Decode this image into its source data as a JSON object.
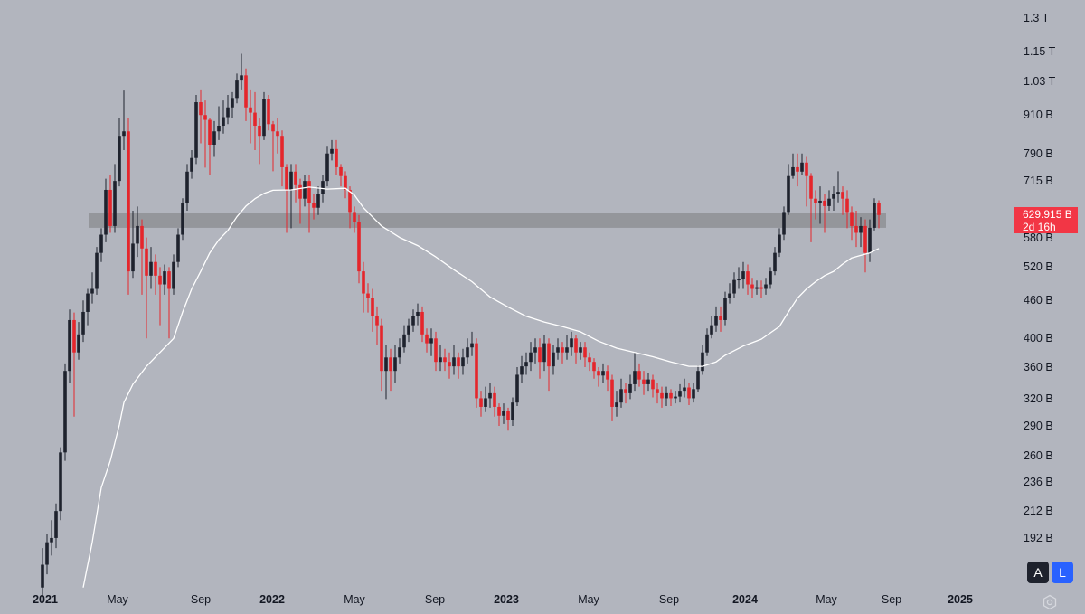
{
  "chart_data": {
    "type": "candlestick",
    "interval_note": "",
    "y_scale": "log",
    "ylim": [
      155,
      1320
    ],
    "y_unit": "B",
    "colors": {
      "up": "#1e222d",
      "down": "#e5262c",
      "ma": "#ffffff",
      "zone": "#8e9095",
      "background": "#b2b5be",
      "price_tag": "#f23645"
    },
    "y_ticks": [
      "1.3 T",
      "1.15 T",
      "1.03 T",
      "910 B",
      "790 B",
      "715 B",
      "580 B",
      "520 B",
      "460 B",
      "400 B",
      "360 B",
      "320 B",
      "290 B",
      "260 B",
      "236 B",
      "212 B",
      "192 B"
    ],
    "y_tick_values": [
      1300,
      1150,
      1030,
      910,
      790,
      715,
      580,
      520,
      460,
      400,
      360,
      320,
      290,
      260,
      236,
      212,
      192
    ],
    "x_ticks": [
      {
        "label": "2021",
        "year": true
      },
      {
        "label": "May",
        "year": false
      },
      {
        "label": "Sep",
        "year": false
      },
      {
        "label": "2022",
        "year": true
      },
      {
        "label": "May",
        "year": false
      },
      {
        "label": "Sep",
        "year": false
      },
      {
        "label": "2023",
        "year": true
      },
      {
        "label": "May",
        "year": false
      },
      {
        "label": "Sep",
        "year": false
      },
      {
        "label": "2024",
        "year": true
      },
      {
        "label": "May",
        "year": false
      },
      {
        "label": "Sep",
        "year": false
      },
      {
        "label": "2025",
        "year": true
      }
    ],
    "zone": {
      "low": 601,
      "high": 634
    },
    "candles": [
      [
        160,
        185,
        155,
        174
      ],
      [
        174,
        195,
        168,
        189
      ],
      [
        189,
        205,
        180,
        192
      ],
      [
        192,
        218,
        185,
        212
      ],
      [
        212,
        268,
        205,
        263
      ],
      [
        263,
        365,
        255,
        355
      ],
      [
        355,
        445,
        340,
        428
      ],
      [
        428,
        440,
        300,
        380
      ],
      [
        380,
        425,
        370,
        406
      ],
      [
        406,
        460,
        395,
        441
      ],
      [
        441,
        480,
        420,
        472
      ],
      [
        472,
        510,
        455,
        480
      ],
      [
        480,
        560,
        470,
        548
      ],
      [
        548,
        600,
        530,
        586
      ],
      [
        586,
        720,
        570,
        691
      ],
      [
        691,
        730,
        590,
        605
      ],
      [
        605,
        760,
        590,
        714
      ],
      [
        714,
        900,
        700,
        843
      ],
      [
        843,
        996,
        800,
        857
      ],
      [
        857,
        900,
        470,
        512
      ],
      [
        512,
        640,
        500,
        567
      ],
      [
        567,
        650,
        540,
        605
      ],
      [
        605,
        620,
        470,
        557
      ],
      [
        557,
        580,
        400,
        504
      ],
      [
        504,
        560,
        480,
        530
      ],
      [
        530,
        545,
        470,
        504
      ],
      [
        504,
        520,
        420,
        488
      ],
      [
        488,
        525,
        470,
        512
      ],
      [
        512,
        520,
        400,
        480
      ],
      [
        480,
        545,
        470,
        530
      ],
      [
        530,
        600,
        520,
        586
      ],
      [
        586,
        670,
        575,
        658
      ],
      [
        658,
        760,
        640,
        739
      ],
      [
        739,
        800,
        720,
        777
      ],
      [
        777,
        980,
        760,
        954
      ],
      [
        954,
        1000,
        820,
        910
      ],
      [
        910,
        960,
        750,
        894
      ],
      [
        894,
        900,
        730,
        816
      ],
      [
        816,
        890,
        780,
        857
      ],
      [
        857,
        940,
        830,
        875
      ],
      [
        875,
        960,
        850,
        903
      ],
      [
        903,
        980,
        880,
        936
      ],
      [
        936,
        990,
        900,
        969
      ],
      [
        969,
        1060,
        950,
        1033
      ],
      [
        1033,
        1140,
        1000,
        1053
      ],
      [
        1053,
        1080,
        890,
        936
      ],
      [
        936,
        1000,
        820,
        918
      ],
      [
        918,
        990,
        800,
        875
      ],
      [
        875,
        900,
        760,
        843
      ],
      [
        843,
        990,
        830,
        965
      ],
      [
        965,
        980,
        860,
        880
      ],
      [
        880,
        890,
        740,
        857
      ],
      [
        857,
        900,
        790,
        843
      ],
      [
        843,
        860,
        700,
        751
      ],
      [
        751,
        760,
        590,
        691
      ],
      [
        691,
        760,
        600,
        739
      ],
      [
        739,
        760,
        660,
        703
      ],
      [
        703,
        720,
        610,
        669
      ],
      [
        669,
        730,
        650,
        714
      ],
      [
        714,
        730,
        590,
        658
      ],
      [
        658,
        680,
        620,
        647
      ],
      [
        647,
        700,
        630,
        680
      ],
      [
        680,
        730,
        660,
        714
      ],
      [
        714,
        810,
        700,
        790
      ],
      [
        790,
        830,
        770,
        803
      ],
      [
        803,
        830,
        730,
        751
      ],
      [
        751,
        760,
        700,
        727
      ],
      [
        727,
        740,
        670,
        691
      ],
      [
        691,
        700,
        600,
        637
      ],
      [
        637,
        650,
        590,
        615
      ],
      [
        615,
        630,
        490,
        512
      ],
      [
        512,
        530,
        440,
        472
      ],
      [
        472,
        490,
        440,
        464
      ],
      [
        464,
        480,
        410,
        434
      ],
      [
        434,
        450,
        390,
        420
      ],
      [
        420,
        430,
        330,
        355
      ],
      [
        355,
        390,
        320,
        373
      ],
      [
        373,
        385,
        330,
        355
      ],
      [
        355,
        390,
        340,
        373
      ],
      [
        373,
        400,
        365,
        387
      ],
      [
        387,
        420,
        380,
        406
      ],
      [
        406,
        430,
        395,
        420
      ],
      [
        420,
        445,
        410,
        434
      ],
      [
        434,
        455,
        420,
        441
      ],
      [
        441,
        450,
        395,
        406
      ],
      [
        406,
        415,
        380,
        393
      ],
      [
        393,
        415,
        375,
        400
      ],
      [
        400,
        410,
        355,
        367
      ],
      [
        367,
        390,
        355,
        373
      ],
      [
        373,
        385,
        355,
        367
      ],
      [
        367,
        380,
        345,
        361
      ],
      [
        361,
        390,
        350,
        373
      ],
      [
        373,
        380,
        345,
        361
      ],
      [
        361,
        385,
        350,
        373
      ],
      [
        373,
        400,
        365,
        387
      ],
      [
        387,
        410,
        375,
        393
      ],
      [
        393,
        400,
        310,
        321
      ],
      [
        321,
        330,
        300,
        311
      ],
      [
        311,
        335,
        305,
        321
      ],
      [
        321,
        340,
        310,
        327
      ],
      [
        327,
        335,
        300,
        311
      ],
      [
        311,
        315,
        290,
        301
      ],
      [
        301,
        315,
        292,
        306
      ],
      [
        306,
        310,
        285,
        296
      ],
      [
        296,
        322,
        290,
        316
      ],
      [
        316,
        360,
        312,
        350
      ],
      [
        350,
        375,
        340,
        361
      ],
      [
        361,
        380,
        350,
        367
      ],
      [
        367,
        395,
        355,
        380
      ],
      [
        380,
        400,
        365,
        387
      ],
      [
        387,
        400,
        345,
        367
      ],
      [
        367,
        405,
        355,
        393
      ],
      [
        393,
        400,
        330,
        361
      ],
      [
        361,
        390,
        350,
        380
      ],
      [
        380,
        400,
        370,
        387
      ],
      [
        387,
        395,
        365,
        380
      ],
      [
        380,
        405,
        370,
        387
      ],
      [
        387,
        410,
        375,
        400
      ],
      [
        400,
        405,
        365,
        380
      ],
      [
        380,
        395,
        370,
        387
      ],
      [
        387,
        395,
        360,
        373
      ],
      [
        373,
        380,
        355,
        367
      ],
      [
        367,
        372,
        345,
        355
      ],
      [
        355,
        360,
        335,
        349
      ],
      [
        349,
        365,
        340,
        355
      ],
      [
        355,
        362,
        330,
        344
      ],
      [
        344,
        350,
        295,
        311
      ],
      [
        311,
        330,
        300,
        316
      ],
      [
        316,
        345,
        310,
        332
      ],
      [
        332,
        340,
        315,
        327
      ],
      [
        327,
        350,
        320,
        338
      ],
      [
        338,
        380,
        330,
        355
      ],
      [
        355,
        365,
        335,
        344
      ],
      [
        344,
        355,
        325,
        338
      ],
      [
        338,
        352,
        330,
        344
      ],
      [
        344,
        350,
        322,
        332
      ],
      [
        332,
        340,
        315,
        327
      ],
      [
        327,
        335,
        310,
        321
      ],
      [
        321,
        335,
        312,
        327
      ],
      [
        327,
        332,
        312,
        321
      ],
      [
        321,
        330,
        315,
        323
      ],
      [
        323,
        338,
        316,
        330
      ],
      [
        330,
        345,
        322,
        334
      ],
      [
        334,
        340,
        313,
        321
      ],
      [
        321,
        340,
        316,
        332
      ],
      [
        332,
        362,
        328,
        355
      ],
      [
        355,
        390,
        350,
        380
      ],
      [
        380,
        415,
        375,
        406
      ],
      [
        406,
        435,
        400,
        420
      ],
      [
        420,
        450,
        410,
        434
      ],
      [
        434,
        450,
        410,
        428
      ],
      [
        428,
        475,
        420,
        464
      ],
      [
        464,
        490,
        455,
        472
      ],
      [
        472,
        510,
        465,
        496
      ],
      [
        496,
        520,
        480,
        497
      ],
      [
        497,
        530,
        480,
        512
      ],
      [
        512,
        525,
        470,
        488
      ],
      [
        488,
        500,
        465,
        480
      ],
      [
        480,
        495,
        470,
        483
      ],
      [
        483,
        495,
        465,
        480
      ],
      [
        480,
        500,
        470,
        488
      ],
      [
        488,
        520,
        480,
        512
      ],
      [
        512,
        560,
        505,
        548
      ],
      [
        548,
        600,
        540,
        586
      ],
      [
        586,
        650,
        575,
        637
      ],
      [
        637,
        760,
        630,
        727
      ],
      [
        727,
        790,
        720,
        751
      ],
      [
        751,
        790,
        700,
        739
      ],
      [
        739,
        790,
        730,
        764
      ],
      [
        764,
        780,
        650,
        727
      ],
      [
        727,
        735,
        570,
        669
      ],
      [
        669,
        690,
        620,
        658
      ],
      [
        658,
        700,
        610,
        664
      ],
      [
        664,
        680,
        590,
        651
      ],
      [
        651,
        690,
        640,
        669
      ],
      [
        669,
        700,
        640,
        680
      ],
      [
        680,
        740,
        660,
        686
      ],
      [
        686,
        700,
        630,
        669
      ],
      [
        669,
        690,
        600,
        637
      ],
      [
        637,
        650,
        575,
        605
      ],
      [
        605,
        640,
        560,
        590
      ],
      [
        590,
        625,
        560,
        605
      ],
      [
        605,
        620,
        510,
        548
      ],
      [
        548,
        620,
        530,
        601
      ],
      [
        601,
        670,
        595,
        658
      ],
      [
        658,
        665,
        600,
        629.915
      ]
    ],
    "ma": [
      null,
      null,
      null,
      null,
      null,
      null,
      null,
      null,
      null,
      160,
      null,
      189,
      null,
      231,
      null,
      255,
      null,
      291,
      316,
      null,
      338,
      null,
      null,
      361,
      null,
      null,
      380,
      null,
      null,
      400,
      null,
      441,
      null,
      480,
      null,
      512,
      null,
      548,
      null,
      575,
      null,
      595,
      null,
      626,
      null,
      651,
      null,
      669,
      null,
      682,
      null,
      690,
      null,
      null,
      null,
      691,
      null,
      null,
      null,
      698,
      null,
      null,
      null,
      693,
      null,
      null,
      null,
      695,
      null,
      678,
      null,
      647,
      null,
      null,
      null,
      605,
      null,
      null,
      null,
      580,
      null,
      null,
      null,
      563,
      null,
      null,
      null,
      540,
      null,
      null,
      null,
      515,
      null,
      null,
      null,
      493,
      null,
      null,
      null,
      466,
      null,
      null,
      null,
      449,
      null,
      null,
      null,
      434,
      null,
      null,
      null,
      425,
      null,
      null,
      null,
      418,
      null,
      null,
      null,
      410,
      null,
      null,
      null,
      396,
      null,
      null,
      null,
      386,
      null,
      null,
      null,
      380,
      null,
      null,
      null,
      374,
      null,
      null,
      null,
      367,
      null,
      null,
      null,
      361,
      null,
      null,
      361,
      null,
      null,
      367,
      null,
      376,
      null,
      null,
      null,
      389,
      null,
      null,
      null,
      399,
      null,
      null,
      null,
      418,
      null,
      441,
      null,
      464,
      null,
      480,
      null,
      493,
      null,
      504,
      null,
      512,
      null,
      526,
      null,
      538,
      null,
      543,
      null,
      548,
      null,
      557
    ]
  },
  "price_tag": {
    "price": "629.915 B",
    "countdown": "2d 16h"
  },
  "controls": {
    "auto_label": "A",
    "log_label": "L"
  },
  "icons": {
    "settings": "hexagon-gear-icon"
  }
}
